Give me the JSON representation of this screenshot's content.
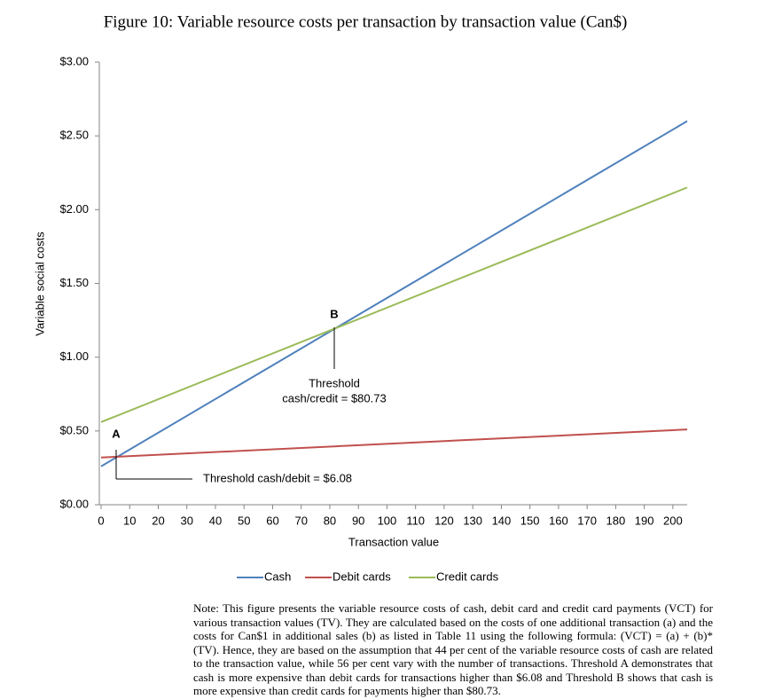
{
  "chart_data": {
    "type": "line",
    "title": "Figure 10: Variable resource costs per transaction by transaction value (Can$)",
    "x_label": "Transaction value",
    "y_label": "Variable social costs",
    "x": [
      0,
      205
    ],
    "series": [
      {
        "name": "Cash",
        "color": "#4f81bd",
        "values": [
          0.26,
          2.6
        ]
      },
      {
        "name": "Debit cards",
        "color": "#c0504d",
        "values": [
          0.32,
          0.51
        ]
      },
      {
        "name": "Credit cards",
        "color": "#9bbb59",
        "values": [
          0.56,
          2.15
        ]
      }
    ],
    "xlim": [
      0,
      205
    ],
    "xticks": [
      0,
      10,
      20,
      30,
      40,
      50,
      60,
      70,
      80,
      90,
      100,
      110,
      120,
      130,
      140,
      150,
      160,
      170,
      180,
      190,
      200
    ],
    "ylim": [
      0,
      3
    ],
    "yticks": [
      {
        "value": 0,
        "label": "$0.00"
      },
      {
        "value": 0.5,
        "label": "$0.50"
      },
      {
        "value": 1,
        "label": "$1.00"
      },
      {
        "value": 1.5,
        "label": "$1.50"
      },
      {
        "value": 2,
        "label": "$2.00"
      },
      {
        "value": 2.5,
        "label": "$2.50"
      },
      {
        "value": 3,
        "label": "$3.00"
      }
    ],
    "grid": false,
    "legend": "bottom",
    "annotations": [
      "A",
      "B",
      "Threshold cash/debit = $6.08",
      "Threshold",
      "cash/credit = $80.73"
    ],
    "note": "Note: This figure presents the variable resource costs of cash, debit card and credit card payments (VCT) for various transaction values (TV). They are calculated based on the costs of one additional transaction (a) and the costs for Can$1 in additional sales (b) as listed in Table 11 using the following formula: (VCT) = (a) + (b)*(TV). Hence, they are based on the assumption that 44 per cent of the variable resource costs of cash are related to the transaction value, while 56 per cent vary with the number of transactions. Threshold A demonstrates that cash is more expensive than debit cards for transactions higher than $6.08 and Threshold B shows that cash is more expensive than credit cards for payments higher than $80.73."
  }
}
